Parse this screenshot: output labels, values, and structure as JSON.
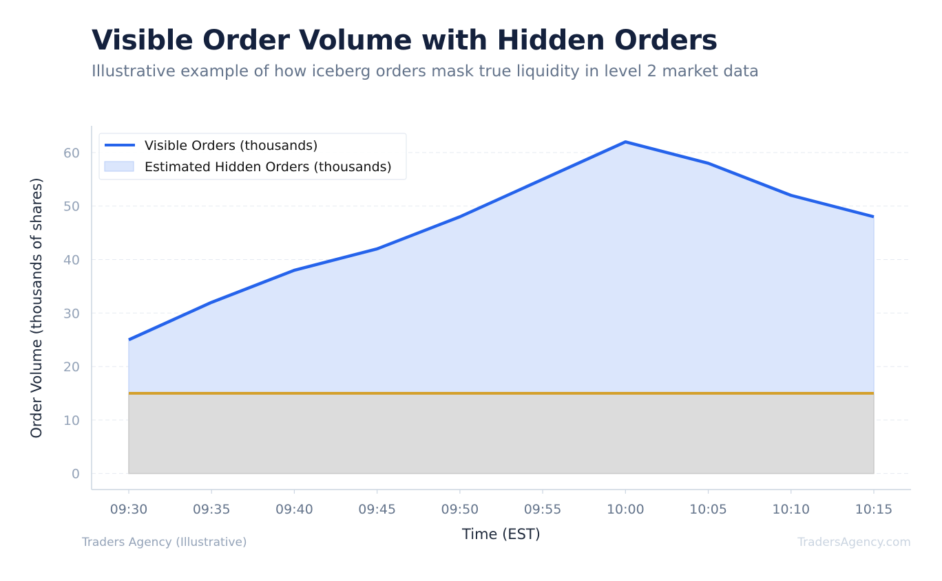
{
  "header": {
    "title": "Visible Order Volume with Hidden Orders",
    "subtitle": "Illustrative example of how iceberg orders mask true liquidity in level 2 market data"
  },
  "footer": {
    "source": "Traders Agency (Illustrative)",
    "watermark": "TradersAgency.com"
  },
  "chart_data": {
    "type": "area",
    "title": "Visible Order Volume with Hidden Orders",
    "xlabel": "Time (EST)",
    "ylabel": "Order Volume (thousands of shares)",
    "categories": [
      "09:30",
      "09:35",
      "09:40",
      "09:45",
      "09:50",
      "09:55",
      "10:00",
      "10:05",
      "10:10",
      "10:15"
    ],
    "ylim": [
      -3,
      65
    ],
    "yticks": [
      0,
      10,
      20,
      30,
      40,
      50,
      60
    ],
    "grid": true,
    "legend_position": "top-left",
    "series": [
      {
        "name": "Visible Orders (thousands)",
        "kind": "line",
        "color": "#2563eb",
        "values": [
          25,
          32,
          38,
          42,
          48,
          55,
          62,
          58,
          52,
          48
        ]
      },
      {
        "name": "Estimated Hidden Orders (thousands)",
        "kind": "fill_between",
        "color": "#dbe6fc",
        "lower": [
          15,
          15,
          15,
          15,
          15,
          15,
          15,
          15,
          15,
          15
        ],
        "upper": [
          25,
          32,
          38,
          42,
          48,
          55,
          62,
          58,
          52,
          48
        ]
      },
      {
        "kind": "line",
        "color": "#d4a02c",
        "values": [
          15,
          15,
          15,
          15,
          15,
          15,
          15,
          15,
          15,
          15
        ]
      },
      {
        "kind": "fill_between",
        "color": "#dcdcdc",
        "lower": [
          0,
          0,
          0,
          0,
          0,
          0,
          0,
          0,
          0,
          0
        ],
        "upper": [
          15,
          15,
          15,
          15,
          15,
          15,
          15,
          15,
          15,
          15
        ]
      }
    ]
  }
}
